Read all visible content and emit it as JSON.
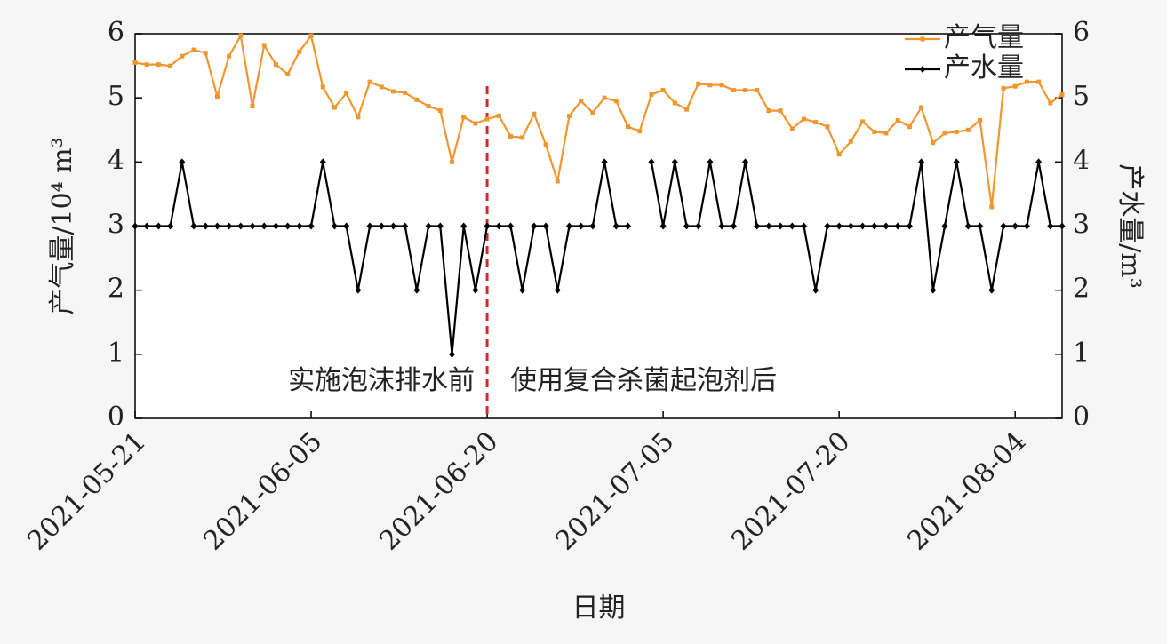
{
  "chart_data": {
    "type": "line",
    "xlabel": "日期",
    "ylabel": "产气量/10⁴ m³",
    "y2label": "产水量/m³",
    "x": [
      "2021-05-21",
      "2021-05-22",
      "2021-05-23",
      "2021-05-24",
      "2021-05-25",
      "2021-05-26",
      "2021-05-27",
      "2021-05-28",
      "2021-05-29",
      "2021-05-30",
      "2021-05-31",
      "2021-06-01",
      "2021-06-02",
      "2021-06-03",
      "2021-06-04",
      "2021-06-05",
      "2021-06-06",
      "2021-06-07",
      "2021-06-08",
      "2021-06-09",
      "2021-06-10",
      "2021-06-11",
      "2021-06-12",
      "2021-06-13",
      "2021-06-14",
      "2021-06-15",
      "2021-06-16",
      "2021-06-17",
      "2021-06-18",
      "2021-06-19",
      "2021-06-20",
      "2021-06-21",
      "2021-06-22",
      "2021-06-23",
      "2021-06-24",
      "2021-06-25",
      "2021-06-26",
      "2021-06-27",
      "2021-06-28",
      "2021-06-29",
      "2021-06-30",
      "2021-07-01",
      "2021-07-02",
      "2021-07-03",
      "2021-07-04",
      "2021-07-05",
      "2021-07-06",
      "2021-07-07",
      "2021-07-08",
      "2021-07-09",
      "2021-07-10",
      "2021-07-11",
      "2021-07-12",
      "2021-07-13",
      "2021-07-14",
      "2021-07-15",
      "2021-07-16",
      "2021-07-17",
      "2021-07-18",
      "2021-07-19",
      "2021-07-20",
      "2021-07-21",
      "2021-07-22",
      "2021-07-23",
      "2021-07-24",
      "2021-07-25",
      "2021-07-26",
      "2021-07-27",
      "2021-07-28",
      "2021-07-29",
      "2021-07-30",
      "2021-07-31",
      "2021-08-01",
      "2021-08-02",
      "2021-08-03",
      "2021-08-04",
      "2021-08-05",
      "2021-08-06",
      "2021-08-07",
      "2021-08-08"
    ],
    "series": [
      {
        "name": "产气量",
        "color": "#f0962e",
        "marker": "square",
        "values": [
          5.55,
          5.52,
          5.52,
          5.5,
          5.65,
          5.75,
          5.7,
          5.02,
          5.65,
          5.97,
          4.87,
          5.82,
          5.52,
          5.37,
          5.72,
          5.97,
          5.17,
          4.85,
          5.07,
          4.7,
          5.25,
          5.17,
          5.1,
          5.08,
          4.97,
          4.87,
          4.8,
          4.0,
          4.7,
          4.6,
          4.67,
          4.72,
          4.4,
          4.38,
          4.75,
          4.27,
          3.7,
          4.72,
          4.95,
          4.77,
          5.0,
          4.95,
          4.55,
          4.48,
          5.05,
          5.12,
          4.92,
          4.82,
          5.22,
          5.2,
          5.2,
          5.12,
          5.12,
          5.12,
          4.8,
          4.8,
          4.52,
          4.67,
          4.62,
          4.55,
          4.12,
          4.32,
          4.63,
          4.47,
          4.45,
          4.65,
          4.55,
          4.85,
          4.3,
          4.45,
          4.47,
          4.5,
          4.65,
          3.3,
          5.15,
          5.18,
          5.25,
          5.25,
          4.92,
          5.05
        ]
      },
      {
        "name": "产水量",
        "color": "#000000",
        "marker": "diamond",
        "axis": "y2",
        "values": [
          3,
          3,
          3,
          3,
          4,
          3,
          3,
          3,
          3,
          3,
          3,
          3,
          3,
          3,
          3,
          3,
          4,
          3,
          3,
          2,
          3,
          3,
          3,
          3,
          2,
          3,
          3,
          1,
          3,
          2,
          3,
          3,
          3,
          2,
          3,
          3,
          2,
          3,
          3,
          3,
          4,
          3,
          3,
          null,
          4,
          3,
          4,
          3,
          3,
          4,
          3,
          3,
          4,
          3,
          3,
          3,
          3,
          3,
          2,
          3,
          3,
          3,
          3,
          3,
          3,
          3,
          3,
          4,
          2,
          3,
          4,
          3,
          3,
          2,
          3,
          3,
          3,
          4,
          3,
          3
        ]
      }
    ],
    "xlim": [
      "2021-05-21",
      "2021-08-08"
    ],
    "xticks": [
      "2021-05-21",
      "2021-06-05",
      "2021-06-20",
      "2021-07-05",
      "2021-07-20",
      "2021-08-04"
    ],
    "ylim": [
      0,
      6
    ],
    "yticks": [
      0,
      1,
      2,
      3,
      4,
      5,
      6
    ],
    "y2lim": [
      0,
      6
    ],
    "y2ticks": [
      0,
      1,
      2,
      3,
      4,
      5,
      6
    ],
    "legend": "upper right",
    "divider": {
      "x": "2021-06-20",
      "color": "#d62728"
    },
    "annotations": [
      {
        "text": "实施泡沫排水前"
      },
      {
        "text": "使用复合杀菌起泡剂后"
      }
    ]
  }
}
